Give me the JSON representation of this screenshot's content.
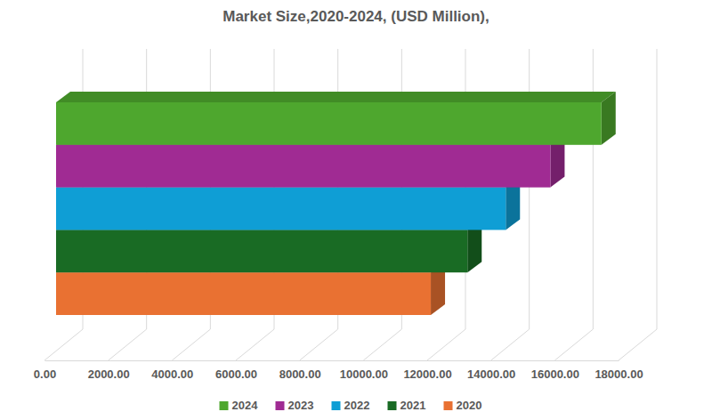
{
  "chart_data": {
    "type": "bar",
    "title": "Market Size,2020-2024, (USD Million),",
    "orientation": "horizontal",
    "categories": [
      null
    ],
    "series": [
      {
        "name": "2024",
        "color": "#4ea72e",
        "values": [
          17100
        ]
      },
      {
        "name": "2023",
        "color": "#a02b93",
        "values": [
          15500
        ]
      },
      {
        "name": "2022",
        "color": "#0f9ed5",
        "values": [
          14100
        ]
      },
      {
        "name": "2021",
        "color": "#196b24",
        "values": [
          12900
        ]
      },
      {
        "name": "2020",
        "color": "#e97132",
        "values": [
          11750
        ]
      }
    ],
    "xlim": [
      0,
      18000
    ],
    "xticks": [
      {
        "value": 0,
        "label": "0.00"
      },
      {
        "value": 2000,
        "label": "2000.00"
      },
      {
        "value": 4000,
        "label": "4000.00"
      },
      {
        "value": 6000,
        "label": "6000.00"
      },
      {
        "value": 8000,
        "label": "8000.00"
      },
      {
        "value": 10000,
        "label": "10000.00"
      },
      {
        "value": 12000,
        "label": "12000.00"
      },
      {
        "value": 14000,
        "label": "14000.00"
      },
      {
        "value": 16000,
        "label": "16000.00"
      },
      {
        "value": 18000,
        "label": "18000.00"
      }
    ],
    "grid": true,
    "legend": "bottom",
    "tick_labels": "x"
  }
}
